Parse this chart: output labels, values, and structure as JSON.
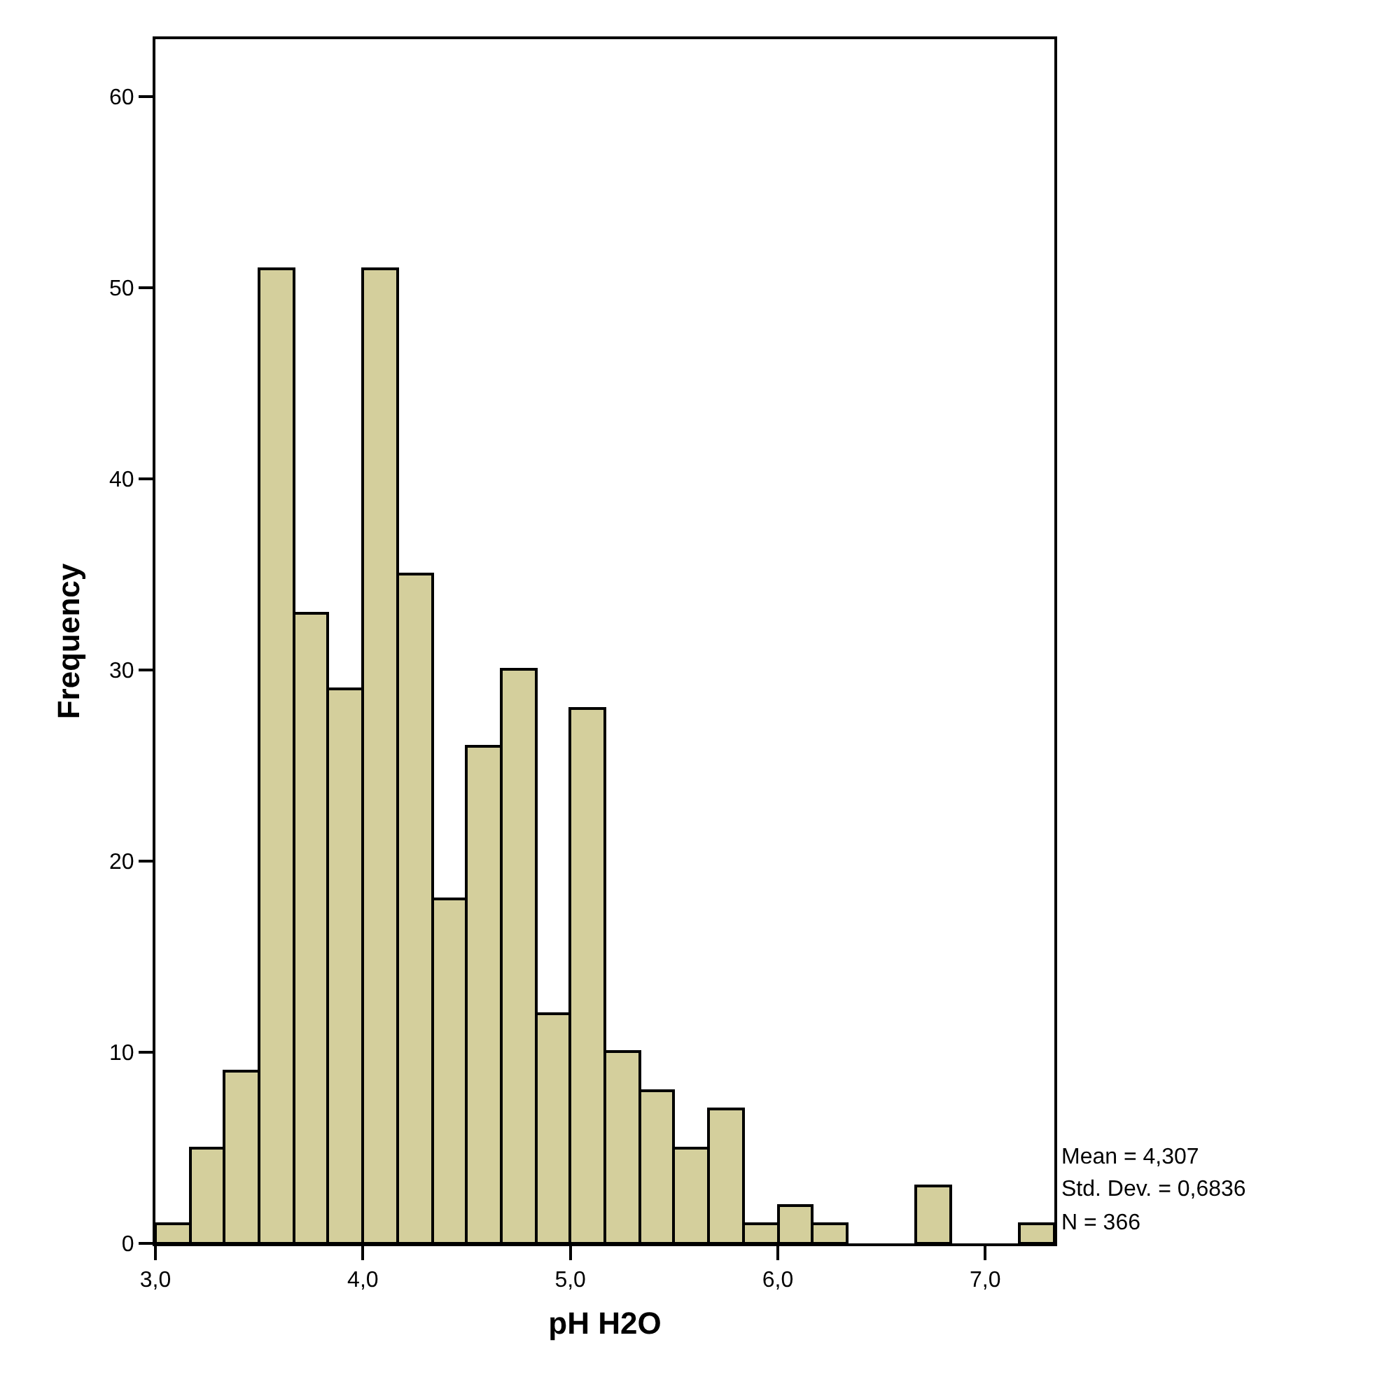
{
  "chart_data": {
    "type": "histogram",
    "xlabel": "pH H2O",
    "ylabel": "Frequency",
    "bins": [
      3,
      3.167,
      3.333,
      3.5,
      3.667,
      3.833,
      4,
      4.167,
      4.333,
      4.5,
      4.667,
      4.833,
      5,
      5.167,
      5.333,
      5.5,
      5.667,
      5.833,
      6,
      6.167,
      6.333,
      6.5,
      6.667,
      6.833,
      7,
      7.167,
      7.333
    ],
    "values": [
      1,
      5,
      9,
      51,
      33,
      29,
      51,
      35,
      18,
      26,
      30,
      12,
      28,
      10,
      8,
      5,
      7,
      1,
      2,
      1,
      0,
      0,
      3,
      0,
      0,
      1
    ],
    "color": "#d4cf9c",
    "xlim": [
      3,
      7.333
    ],
    "xticks": [
      {
        "value": 3,
        "label": "3,0"
      },
      {
        "value": 4,
        "label": "4,0"
      },
      {
        "value": 5,
        "label": "5,0"
      },
      {
        "value": 6,
        "label": "6,0"
      },
      {
        "value": 7,
        "label": "7,0"
      }
    ],
    "ylim": [
      0,
      63
    ],
    "yticks": [
      0,
      10,
      20,
      30,
      40,
      50,
      60
    ],
    "annotations": [
      "Mean = 4,307",
      "Std. Dev. = 0,6836",
      "N = 366"
    ]
  }
}
